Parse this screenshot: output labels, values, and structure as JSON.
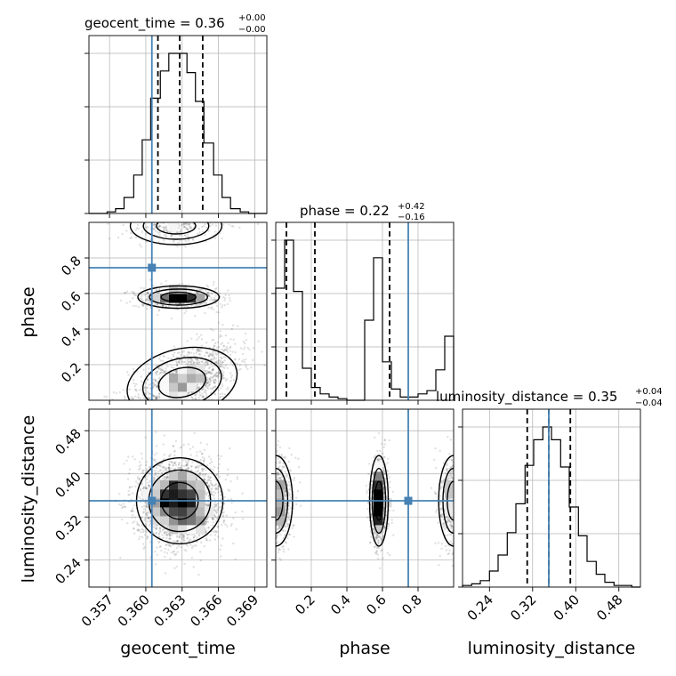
{
  "chart_data": {
    "type": "corner",
    "parameters": [
      "geocent_time",
      "phase",
      "luminosity_distance"
    ],
    "axis_labels": [
      "geocent_time",
      "phase",
      "luminosity_distance"
    ],
    "ranges": [
      [
        0.3553,
        0.37
      ],
      [
        0.0,
        1.0
      ],
      [
        0.19,
        0.52
      ]
    ],
    "ticks": [
      {
        "values": [
          0.357,
          0.36,
          0.363,
          0.366,
          0.369
        ],
        "labels": [
          "0.357",
          "0.360",
          "0.363",
          "0.366",
          "0.369"
        ]
      },
      {
        "values": [
          0.2,
          0.4,
          0.6,
          0.8
        ],
        "labels": [
          "0.2",
          "0.4",
          "0.6",
          "0.8"
        ]
      },
      {
        "values": [
          0.24,
          0.32,
          0.4,
          0.48
        ],
        "labels": [
          "0.24",
          "0.32",
          "0.40",
          "0.48"
        ]
      }
    ],
    "truths": {
      "geocent_time": 0.3605,
      "phase": 0.745,
      "luminosity_distance": 0.35
    },
    "titles": [
      {
        "name": "geocent_time",
        "median": "0.36",
        "plus": "+0.00",
        "minus": "−0.00"
      },
      {
        "name": "phase",
        "median": "0.22",
        "plus": "+0.42",
        "minus": "−0.16"
      },
      {
        "name": "luminosity_distance",
        "median": "0.35",
        "plus": "+0.04",
        "minus": "−0.04"
      }
    ],
    "quantiles": {
      "geocent_time": [
        0.361,
        0.3628,
        0.3647
      ],
      "phase": [
        0.06,
        0.22,
        0.64
      ],
      "luminosity_distance": [
        0.31,
        0.35,
        0.39
      ]
    },
    "histograms": {
      "geocent_time": {
        "edges": [
          0.3553,
          0.356,
          0.3568,
          0.3575,
          0.3582,
          0.359,
          0.3597,
          0.3604,
          0.3612,
          0.3619,
          0.3626,
          0.3634,
          0.3641,
          0.3648,
          0.3656,
          0.3663,
          0.367,
          0.3678,
          0.3685,
          0.3692,
          0.37
        ],
        "counts": [
          0,
          0,
          1,
          3,
          10,
          24,
          46,
          72,
          89,
          100,
          100,
          88,
          70,
          44,
          24,
          10,
          3,
          1,
          0,
          0
        ]
      },
      "phase": {
        "edges": [
          0.0,
          0.05,
          0.1,
          0.15,
          0.2,
          0.25,
          0.3,
          0.35,
          0.4,
          0.45,
          0.5,
          0.55,
          0.6,
          0.65,
          0.7,
          0.75,
          0.8,
          0.85,
          0.9,
          0.95,
          1.0
        ],
        "counts": [
          70,
          100,
          68,
          20,
          8,
          4,
          2,
          1,
          0,
          0,
          50,
          89,
          24,
          7,
          2,
          2,
          4,
          6,
          19,
          40
        ]
      },
      "luminosity_distance": {
        "edges": [
          0.19,
          0.207,
          0.223,
          0.24,
          0.256,
          0.273,
          0.289,
          0.306,
          0.322,
          0.339,
          0.355,
          0.372,
          0.388,
          0.405,
          0.421,
          0.438,
          0.454,
          0.471,
          0.487,
          0.504,
          0.52
        ],
        "counts": [
          1,
          2,
          4,
          10,
          20,
          34,
          52,
          76,
          92,
          100,
          92,
          75,
          50,
          32,
          16,
          8,
          3,
          1,
          1,
          0
        ]
      }
    },
    "joint_modes": {
      "geocent_time-phase": {
        "centers": [
          [
            0.3627,
            0.58
          ],
          [
            0.3625,
            0.98
          ],
          [
            0.363,
            0.1
          ]
        ]
      },
      "geocent_time-luminosity_distance": {
        "centers": [
          [
            0.3628,
            0.35
          ]
        ]
      },
      "phase-luminosity_distance": {
        "centers": [
          [
            0.0,
            0.35
          ],
          [
            0.58,
            0.35
          ],
          [
            1.0,
            0.35
          ]
        ]
      }
    },
    "colors": {
      "truth": "#4682b4",
      "lines": "#000000",
      "grid": "#b0b0b0"
    }
  }
}
